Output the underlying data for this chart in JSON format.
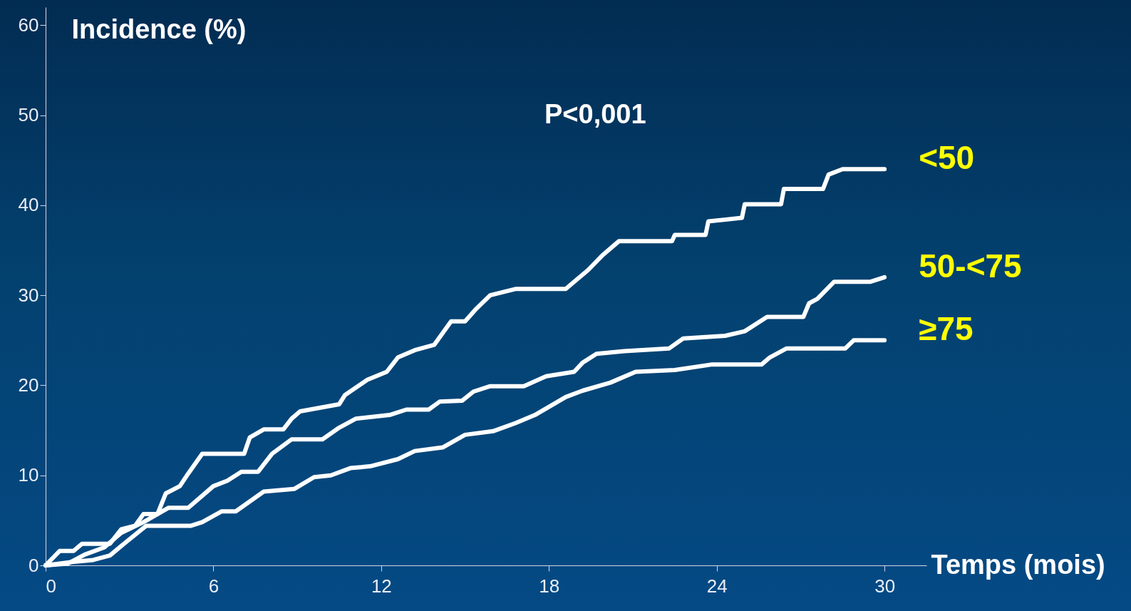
{
  "chart_data": {
    "type": "line",
    "xlabel": "Temps (mois)",
    "ylabel": "Incidence (%)",
    "annotations": [
      "P<0,001"
    ],
    "xlim": [
      0,
      31.5
    ],
    "ylim": [
      0,
      62
    ],
    "xticks": [
      0,
      6,
      12,
      18,
      24,
      30
    ],
    "yticks": [
      0,
      10,
      20,
      30,
      40,
      50,
      60
    ],
    "grid": false,
    "marker": "none",
    "line_style": "solid",
    "series": [
      {
        "name": "<50",
        "color": "#ffffff",
        "x": [
          0,
          0.5,
          1.0,
          1.3,
          2.3,
          2.7,
          3.2,
          3.5,
          4,
          4.3,
          4.8,
          5.1,
          5.6,
          7.1,
          7.3,
          7.8,
          8.5,
          8.8,
          9.1,
          9.8,
          10.5,
          10.7,
          11.5,
          12.2,
          12.6,
          13.2,
          13.9,
          14.5,
          15,
          15.4,
          15.9,
          16.8,
          18.6,
          18.9,
          19.4,
          19.9,
          20.5,
          22.4,
          22.5,
          23.6,
          23.7,
          24.9,
          25,
          26.3,
          26.4,
          27.8,
          28,
          28.5,
          30
        ],
        "values": [
          0,
          1.6,
          1.6,
          2.4,
          2.4,
          4,
          4.4,
          5.7,
          5.7,
          8,
          8.8,
          10.2,
          12.4,
          12.4,
          14.2,
          15.1,
          15.1,
          16.3,
          17.1,
          17.5,
          17.9,
          18.9,
          20.6,
          21.5,
          23.1,
          23.9,
          24.5,
          27.1,
          27.1,
          28.5,
          30,
          30.7,
          30.7,
          31.5,
          32.8,
          34.4,
          36,
          36,
          36.7,
          36.7,
          38.2,
          38.6,
          40.1,
          40.1,
          41.8,
          41.8,
          43.4,
          44,
          44
        ]
      },
      {
        "name": "50-<75",
        "color": "#ffffff",
        "x": [
          0,
          0.8,
          1.4,
          2.1,
          2.7,
          3.5,
          4.4,
          5.1,
          6,
          6.5,
          7,
          7.6,
          8.1,
          8.8,
          9.9,
          10.5,
          11.1,
          12.3,
          12.9,
          13.7,
          14.1,
          14.9,
          15.3,
          15.9,
          17.1,
          17.9,
          18.9,
          19.2,
          19.7,
          20.7,
          22.3,
          22.8,
          24.3,
          25,
          25.8,
          27.1,
          27.3,
          27.6,
          28.2,
          29.5,
          30
        ],
        "values": [
          0,
          0.2,
          1.2,
          2,
          3.6,
          4.8,
          6.4,
          6.4,
          8.8,
          9.4,
          10.4,
          10.4,
          12.4,
          14,
          14,
          15.3,
          16.3,
          16.7,
          17.3,
          17.3,
          18.2,
          18.3,
          19.3,
          19.9,
          19.9,
          21,
          21.5,
          22.5,
          23.5,
          23.8,
          24.1,
          25.2,
          25.5,
          26,
          27.6,
          27.6,
          29.1,
          29.6,
          31.5,
          31.5,
          32
        ]
      },
      {
        "name": "≥75",
        "color": "#ffffff",
        "x": [
          0,
          1,
          1.7,
          2.3,
          2.8,
          3.6,
          5.2,
          5.6,
          6.3,
          6.8,
          7.8,
          8.9,
          9.6,
          10.2,
          10.9,
          11.6,
          12.6,
          13.2,
          14.2,
          15,
          16,
          16.8,
          17.5,
          18.6,
          19.2,
          20.2,
          21.1,
          22.5,
          23.8,
          25.6,
          25.9,
          26.5,
          28.6,
          28.9,
          30
        ],
        "values": [
          0,
          0.4,
          0.6,
          1.1,
          2.4,
          4.4,
          4.4,
          4.8,
          6,
          6,
          8.2,
          8.5,
          9.8,
          10,
          10.8,
          11,
          11.8,
          12.7,
          13.1,
          14.5,
          14.9,
          15.8,
          16.7,
          18.7,
          19.4,
          20.3,
          21.5,
          21.7,
          22.3,
          22.3,
          23.1,
          24.1,
          24.1,
          25,
          25
        ]
      }
    ]
  }
}
